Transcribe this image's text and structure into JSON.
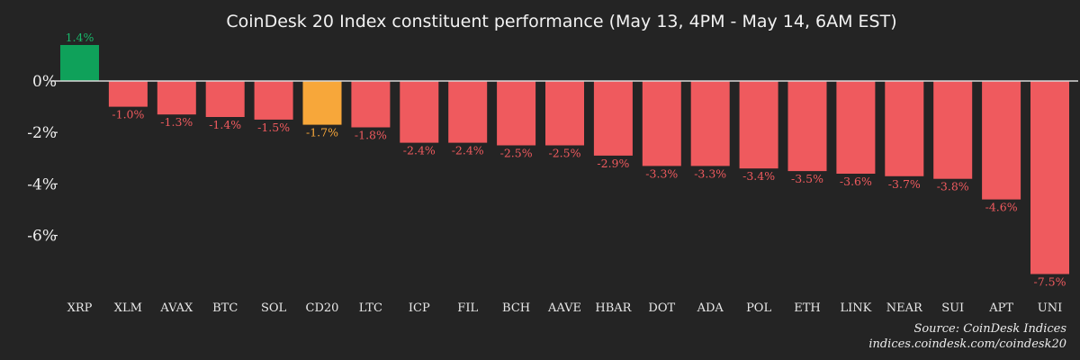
{
  "chart_data": {
    "type": "bar",
    "title": "CoinDesk 20 Index constituent performance (May 13, 4PM - May 14, 6AM EST)",
    "categories": [
      "XRP",
      "XLM",
      "AVAX",
      "BTC",
      "SOL",
      "CD20",
      "LTC",
      "ICP",
      "FIL",
      "BCH",
      "AAVE",
      "HBAR",
      "DOT",
      "ADA",
      "POL",
      "ETH",
      "LINK",
      "NEAR",
      "SUI",
      "APT",
      "UNI"
    ],
    "values": [
      1.4,
      -1.0,
      -1.3,
      -1.4,
      -1.5,
      -1.7,
      -1.8,
      -2.4,
      -2.4,
      -2.5,
      -2.5,
      -2.9,
      -3.3,
      -3.3,
      -3.4,
      -3.5,
      -3.6,
      -3.7,
      -3.8,
      -4.6,
      -7.5
    ],
    "data_labels": [
      "1.4%",
      "-1.0%",
      "-1.3%",
      "-1.4%",
      "-1.5%",
      "-1.7%",
      "-1.8%",
      "-2.4%",
      "-2.4%",
      "-2.5%",
      "-2.5%",
      "-2.9%",
      "-3.3%",
      "-3.3%",
      "-3.4%",
      "-3.5%",
      "-3.6%",
      "-3.7%",
      "-3.8%",
      "-4.6%",
      "-7.5%"
    ],
    "highlight_category": "CD20",
    "y_ticks": [
      0,
      -2,
      -4,
      -6
    ],
    "y_tick_labels": [
      "0%",
      "-2%",
      "-4%",
      "-6%"
    ],
    "ylim": [
      -7.5,
      1.4
    ],
    "grid": false,
    "colors": {
      "background": "#242424",
      "positive": "#0fa15a",
      "negative": "#ef5a5e",
      "highlight": "#f7a73a",
      "positive_label": "#18b86a",
      "negative_label": "#ef5a5e",
      "highlight_label": "#f7a73a",
      "zero_line": "#d8d8d8"
    }
  },
  "source": {
    "line1": "Source: CoinDesk Indices",
    "line2": "indices.coindesk.com/coindesk20"
  }
}
